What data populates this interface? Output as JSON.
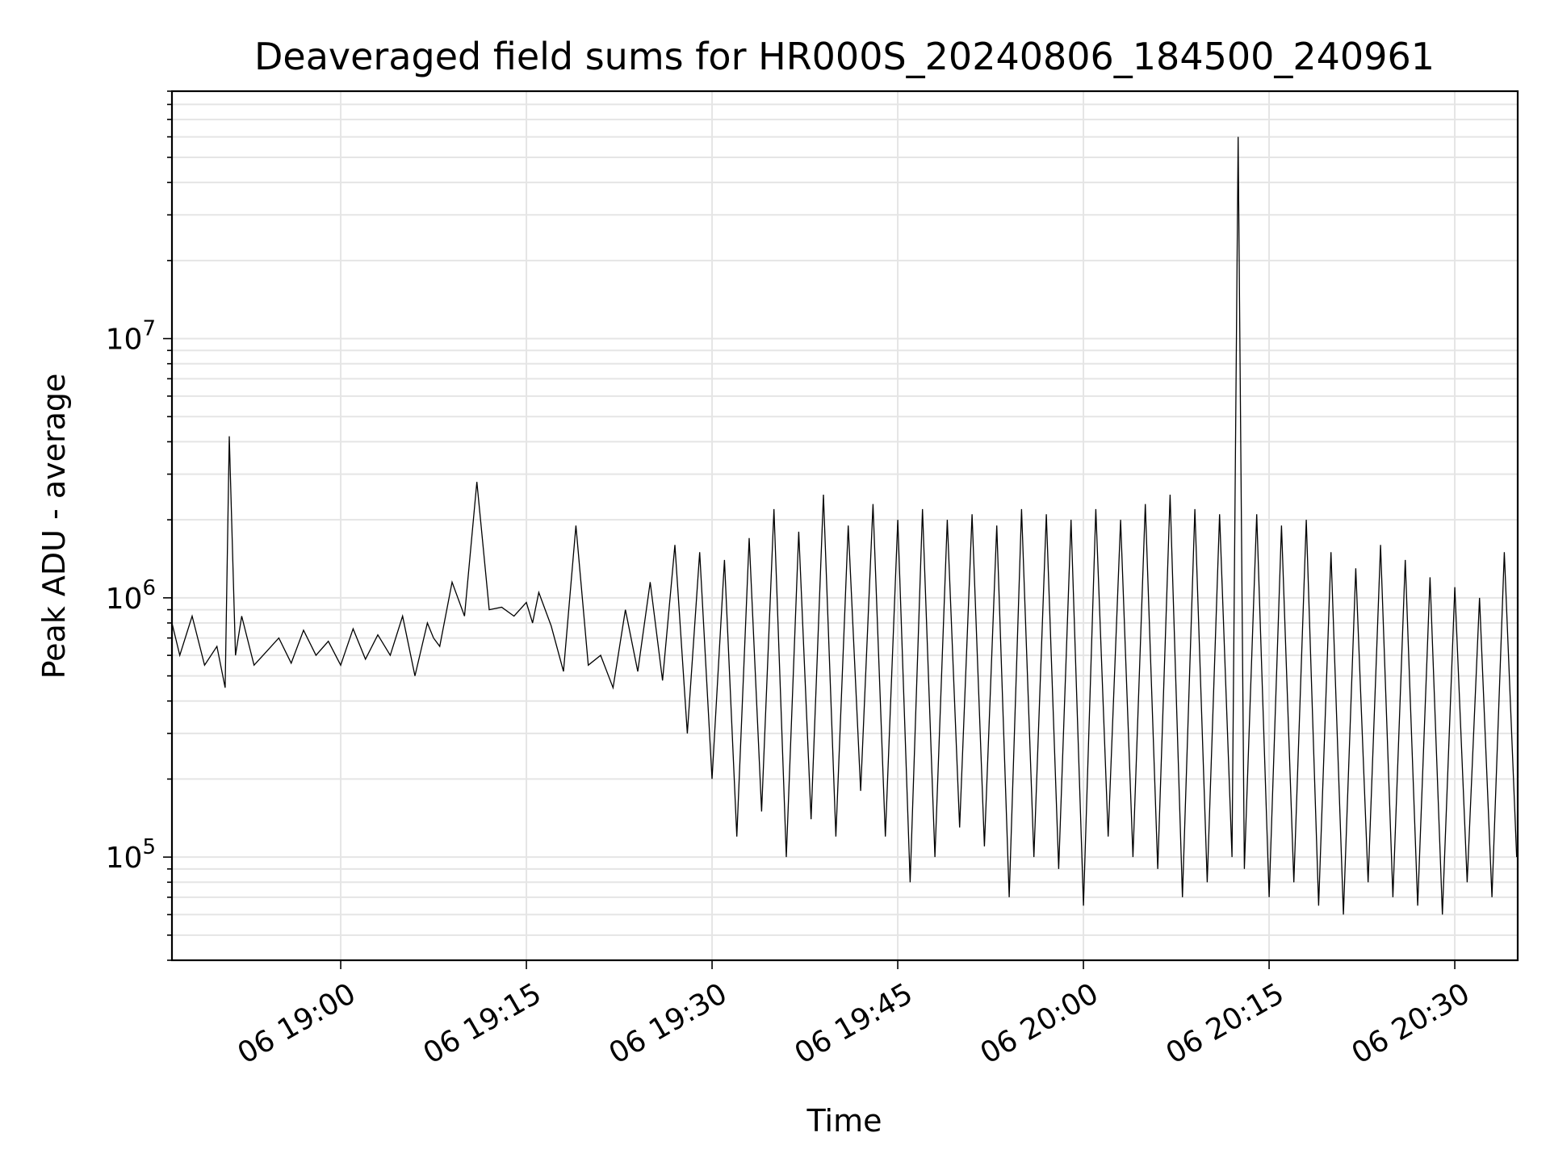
{
  "chart_data": {
    "type": "line",
    "title": "Deaveraged field sums for HR000S_20240806_184500_240961",
    "xlabel": "Time",
    "ylabel": "Peak ADU - average",
    "y_scale": "log",
    "ylim": [
      40000,
      90000000
    ],
    "xlim": [
      "2024-08-06 18:46:22",
      "2024-08-06 20:35:05"
    ],
    "grid": true,
    "line_color": "#000000",
    "grid_color": "#e5e5e5",
    "x_ticks": [
      "06 19:00",
      "06 19:15",
      "06 19:30",
      "06 19:45",
      "06 20:00",
      "06 20:15",
      "06 20:30"
    ],
    "y_ticks": [
      {
        "base": "10",
        "exp": "5"
      },
      {
        "base": "10",
        "exp": "6"
      },
      {
        "base": "10",
        "exp": "7"
      }
    ],
    "series": [
      {
        "x": [
          "2024-08-06 18:46:22",
          "2024-08-06 18:47:00",
          "2024-08-06 18:48:00",
          "2024-08-06 18:49:00",
          "2024-08-06 18:50:00",
          "2024-08-06 18:50:40",
          "2024-08-06 18:51:00",
          "2024-08-06 18:51:30",
          "2024-08-06 18:52:00",
          "2024-08-06 18:53:00",
          "2024-08-06 18:54:00",
          "2024-08-06 18:55:00",
          "2024-08-06 18:56:00",
          "2024-08-06 18:57:00",
          "2024-08-06 18:58:00",
          "2024-08-06 18:59:00",
          "2024-08-06 19:00:00",
          "2024-08-06 19:01:00",
          "2024-08-06 19:02:00",
          "2024-08-06 19:03:00",
          "2024-08-06 19:04:00",
          "2024-08-06 19:05:00",
          "2024-08-06 19:06:00",
          "2024-08-06 19:07:00",
          "2024-08-06 19:07:30",
          "2024-08-06 19:08:00",
          "2024-08-06 19:09:00",
          "2024-08-06 19:10:00",
          "2024-08-06 19:11:00",
          "2024-08-06 19:12:00",
          "2024-08-06 19:13:00",
          "2024-08-06 19:14:00",
          "2024-08-06 19:15:00",
          "2024-08-06 19:15:30",
          "2024-08-06 19:16:00",
          "2024-08-06 19:17:00",
          "2024-08-06 19:18:00",
          "2024-08-06 19:19:00",
          "2024-08-06 19:20:00",
          "2024-08-06 19:21:00",
          "2024-08-06 19:22:00",
          "2024-08-06 19:23:00",
          "2024-08-06 19:24:00",
          "2024-08-06 19:25:00",
          "2024-08-06 19:26:00",
          "2024-08-06 19:27:00",
          "2024-08-06 19:28:00",
          "2024-08-06 19:29:00",
          "2024-08-06 19:30:00",
          "2024-08-06 19:31:00",
          "2024-08-06 19:32:00",
          "2024-08-06 19:33:00",
          "2024-08-06 19:34:00",
          "2024-08-06 19:35:00",
          "2024-08-06 19:36:00",
          "2024-08-06 19:37:00",
          "2024-08-06 19:38:00",
          "2024-08-06 19:39:00",
          "2024-08-06 19:40:00",
          "2024-08-06 19:41:00",
          "2024-08-06 19:42:00",
          "2024-08-06 19:43:00",
          "2024-08-06 19:44:00",
          "2024-08-06 19:45:00",
          "2024-08-06 19:46:00",
          "2024-08-06 19:47:00",
          "2024-08-06 19:48:00",
          "2024-08-06 19:49:00",
          "2024-08-06 19:50:00",
          "2024-08-06 19:51:00",
          "2024-08-06 19:52:00",
          "2024-08-06 19:53:00",
          "2024-08-06 19:54:00",
          "2024-08-06 19:55:00",
          "2024-08-06 19:56:00",
          "2024-08-06 19:57:00",
          "2024-08-06 19:58:00",
          "2024-08-06 19:59:00",
          "2024-08-06 20:00:00",
          "2024-08-06 20:01:00",
          "2024-08-06 20:02:00",
          "2024-08-06 20:03:00",
          "2024-08-06 20:04:00",
          "2024-08-06 20:05:00",
          "2024-08-06 20:06:00",
          "2024-08-06 20:07:00",
          "2024-08-06 20:08:00",
          "2024-08-06 20:09:00",
          "2024-08-06 20:10:00",
          "2024-08-06 20:11:00",
          "2024-08-06 20:12:00",
          "2024-08-06 20:12:30",
          "2024-08-06 20:13:00",
          "2024-08-06 20:14:00",
          "2024-08-06 20:15:00",
          "2024-08-06 20:16:00",
          "2024-08-06 20:17:00",
          "2024-08-06 20:18:00",
          "2024-08-06 20:19:00",
          "2024-08-06 20:20:00",
          "2024-08-06 20:21:00",
          "2024-08-06 20:22:00",
          "2024-08-06 20:23:00",
          "2024-08-06 20:24:00",
          "2024-08-06 20:25:00",
          "2024-08-06 20:26:00",
          "2024-08-06 20:27:00",
          "2024-08-06 20:28:00",
          "2024-08-06 20:29:00",
          "2024-08-06 20:30:00",
          "2024-08-06 20:31:00",
          "2024-08-06 20:32:00",
          "2024-08-06 20:33:00",
          "2024-08-06 20:34:00",
          "2024-08-06 20:35:00"
        ],
        "values": [
          800000,
          600000,
          850000,
          550000,
          650000,
          450000,
          4200000,
          600000,
          850000,
          550000,
          620000,
          700000,
          560000,
          750000,
          600000,
          680000,
          550000,
          760000,
          580000,
          720000,
          600000,
          850000,
          500000,
          800000,
          700000,
          650000,
          1150000,
          850000,
          2800000,
          900000,
          920000,
          850000,
          960000,
          800000,
          1050000,
          780000,
          520000,
          1900000,
          550000,
          600000,
          450000,
          900000,
          520000,
          1150000,
          480000,
          1600000,
          300000,
          1500000,
          200000,
          1400000,
          120000,
          1700000,
          150000,
          2200000,
          100000,
          1800000,
          140000,
          2500000,
          120000,
          1900000,
          180000,
          2300000,
          120000,
          2000000,
          80000,
          2200000,
          100000,
          2000000,
          130000,
          2100000,
          110000,
          1900000,
          70000,
          2200000,
          100000,
          2100000,
          90000,
          2000000,
          65000,
          2200000,
          120000,
          2000000,
          100000,
          2300000,
          90000,
          2500000,
          70000,
          2200000,
          80000,
          2100000,
          100000,
          60000000,
          90000,
          2100000,
          70000,
          1900000,
          80000,
          2000000,
          65000,
          1500000,
          60000,
          1300000,
          80000,
          1600000,
          70000,
          1400000,
          65000,
          1200000,
          60000,
          1100000,
          80000,
          1000000,
          70000,
          1500000,
          100000
        ]
      }
    ]
  }
}
